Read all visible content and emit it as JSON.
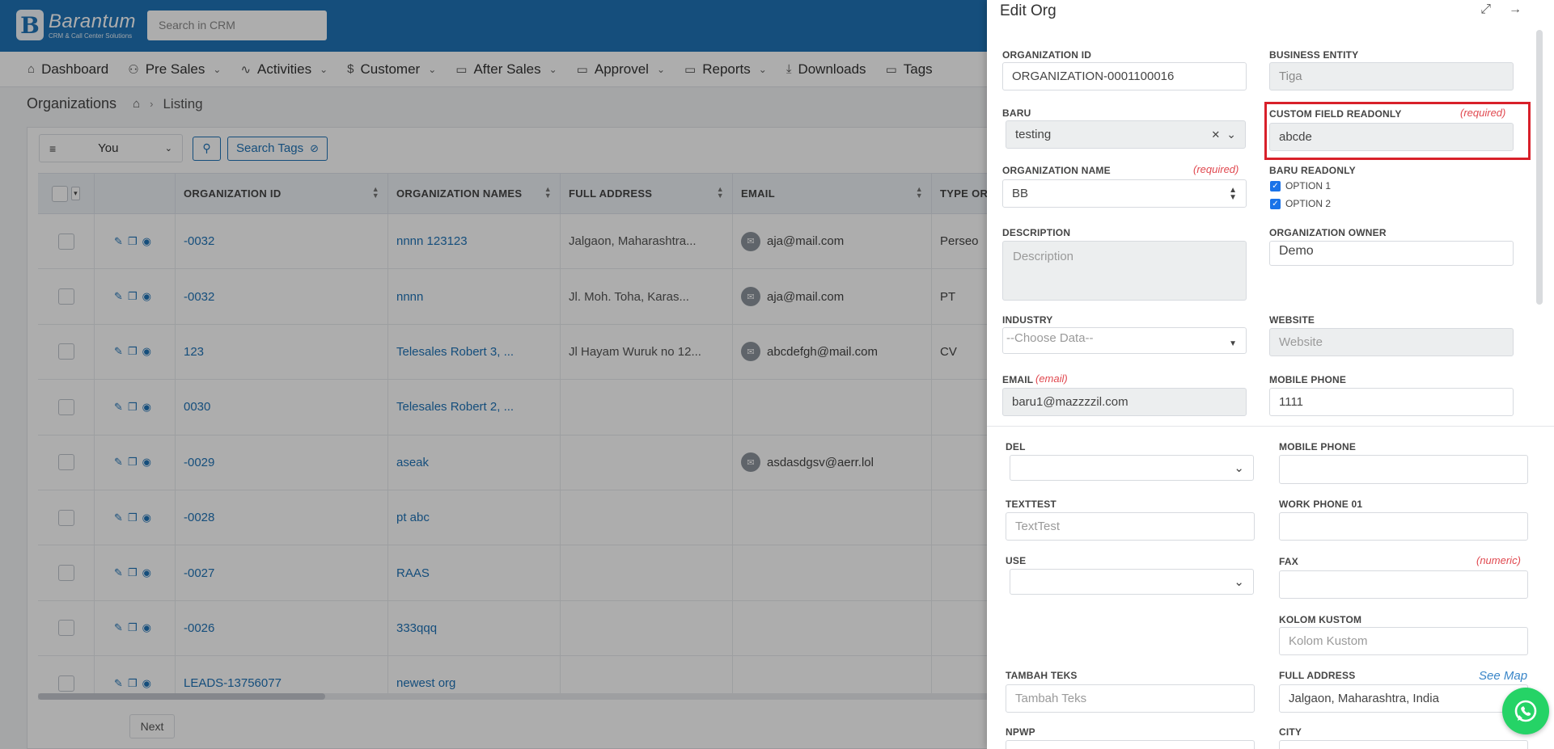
{
  "header": {
    "logo_name": "Barantum",
    "logo_tagline": "CRM & Call Center Solutions",
    "search_placeholder": "Search in CRM"
  },
  "menu": [
    {
      "label": "Dashboard",
      "icon": "home-icon",
      "has_dropdown": false
    },
    {
      "label": "Pre Sales",
      "icon": "users-icon",
      "has_dropdown": true
    },
    {
      "label": "Activities",
      "icon": "activity-icon",
      "has_dropdown": true
    },
    {
      "label": "Customer",
      "icon": "dollar-icon",
      "has_dropdown": true
    },
    {
      "label": "After Sales",
      "icon": "folder-icon",
      "has_dropdown": true
    },
    {
      "label": "Approvel",
      "icon": "folder-icon",
      "has_dropdown": true
    },
    {
      "label": "Reports",
      "icon": "folder-icon",
      "has_dropdown": true
    },
    {
      "label": "Downloads",
      "icon": "download-icon",
      "has_dropdown": false
    },
    {
      "label": "Tags",
      "icon": "folder-icon",
      "has_dropdown": false
    }
  ],
  "breadcrumb": {
    "title": "Organizations",
    "current": "Listing"
  },
  "filters": {
    "owner": "You",
    "search_tags": "Search Tags"
  },
  "table": {
    "columns": [
      "ORGANIZATION ID",
      "ORGANIZATION NAMES",
      "FULL ADDRESS",
      "EMAIL",
      "TYPE OR"
    ],
    "rows": [
      {
        "id": "-0032",
        "name": "nnnn 123123",
        "address": "Jalgaon, Maharashtra...",
        "email": "aja@mail.com",
        "type": "Perseo"
      },
      {
        "id": "-0032",
        "name": "nnnn",
        "address": "Jl. Moh. Toha, Karas...",
        "email": "aja@mail.com",
        "type": "PT"
      },
      {
        "id": "123",
        "name": "Telesales Robert 3, ...",
        "address": "Jl Hayam Wuruk no 12...",
        "email": "abcdefgh@mail.com",
        "type": "CV"
      },
      {
        "id": "0030",
        "name": "Telesales Robert 2, ...",
        "address": "",
        "email": "",
        "type": ""
      },
      {
        "id": "-0029",
        "name": "aseak",
        "address": "",
        "email": "asdasdgsv@aerr.lol",
        "type": ""
      },
      {
        "id": "-0028",
        "name": "pt abc",
        "address": "",
        "email": "",
        "type": ""
      },
      {
        "id": "-0027",
        "name": "RAAS",
        "address": "",
        "email": "",
        "type": ""
      },
      {
        "id": "-0026",
        "name": "333qqq",
        "address": "",
        "email": "",
        "type": ""
      },
      {
        "id": "LEADS-13756077",
        "name": "newest org",
        "address": "",
        "email": "",
        "type": ""
      }
    ],
    "next_label": "Next"
  },
  "drawer": {
    "title": "Edit Org",
    "fields": {
      "organization_id": {
        "label": "ORGANIZATION ID",
        "value": "ORGANIZATION-0001100016"
      },
      "business_entity": {
        "label": "BUSINESS ENTITY",
        "value": "Tiga"
      },
      "baru": {
        "label": "BARU",
        "value": "testing"
      },
      "custom_field_readonly": {
        "label": "CUSTOM FIELD READONLY",
        "required": "(required)",
        "value": "abcde"
      },
      "organization_name": {
        "label": "ORGANIZATION NAME",
        "required": "(required)",
        "value": "BB"
      },
      "baru_readonly": {
        "label": "BARU READONLY",
        "option1": "OPTION 1",
        "option2": "OPTION 2"
      },
      "description": {
        "label": "DESCRIPTION",
        "placeholder": "Description"
      },
      "organization_owner": {
        "label": "ORGANIZATION OWNER",
        "value": "Demo"
      },
      "industry": {
        "label": "INDUSTRY",
        "placeholder": "--Choose Data--"
      },
      "website": {
        "label": "WEBSITE",
        "placeholder": "Website"
      },
      "email": {
        "label": "EMAIL",
        "hint": "(email)",
        "value": "baru1@mazzzzil.com"
      },
      "mobile_phone_top": {
        "label": "MOBILE PHONE",
        "value": "1111"
      },
      "del": {
        "label": "DEL"
      },
      "mobile_phone": {
        "label": "MOBILE PHONE"
      },
      "texttest": {
        "label": "TEXTTEST",
        "placeholder": "TextTest"
      },
      "work_phone": {
        "label": "WORK PHONE 01"
      },
      "use": {
        "label": "USE"
      },
      "fax": {
        "label": "FAX",
        "hint": "(numeric)"
      },
      "kolom_kustom": {
        "label": "KOLOM KUSTOM",
        "placeholder": "Kolom Kustom"
      },
      "tambah_teks": {
        "label": "TAMBAH TEKS",
        "placeholder": "Tambah Teks"
      },
      "full_address": {
        "label": "FULL ADDRESS",
        "link": "See Map",
        "value": "Jalgaon, Maharashtra, India"
      },
      "npwp": {
        "label": "NPWP"
      },
      "city": {
        "label": "CITY"
      }
    }
  },
  "colors": {
    "brand": "#1f73b7",
    "required": "#e0484f",
    "highlight": "#d8202a",
    "whatsapp": "#25d366"
  }
}
